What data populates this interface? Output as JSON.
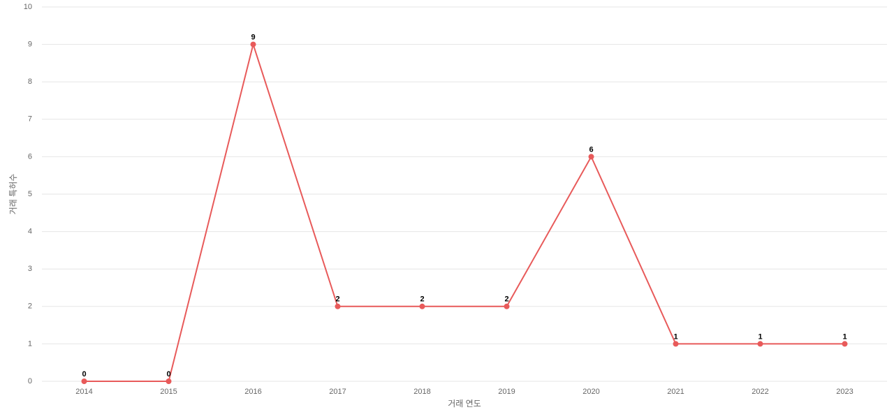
{
  "chart_data": {
    "type": "line",
    "x_label": "거래 연도",
    "y_label": "거래 특허수",
    "categories": [
      "2014",
      "2015",
      "2016",
      "2017",
      "2018",
      "2019",
      "2020",
      "2021",
      "2022",
      "2023"
    ],
    "values": [
      0,
      0,
      9,
      2,
      2,
      2,
      6,
      1,
      1,
      1
    ],
    "color": "#e85a5a",
    "ylim": [
      0,
      10
    ],
    "yticks": [
      0,
      1,
      2,
      3,
      4,
      5,
      6,
      7,
      8,
      9,
      10
    ],
    "grid": true,
    "data_labels": true
  }
}
